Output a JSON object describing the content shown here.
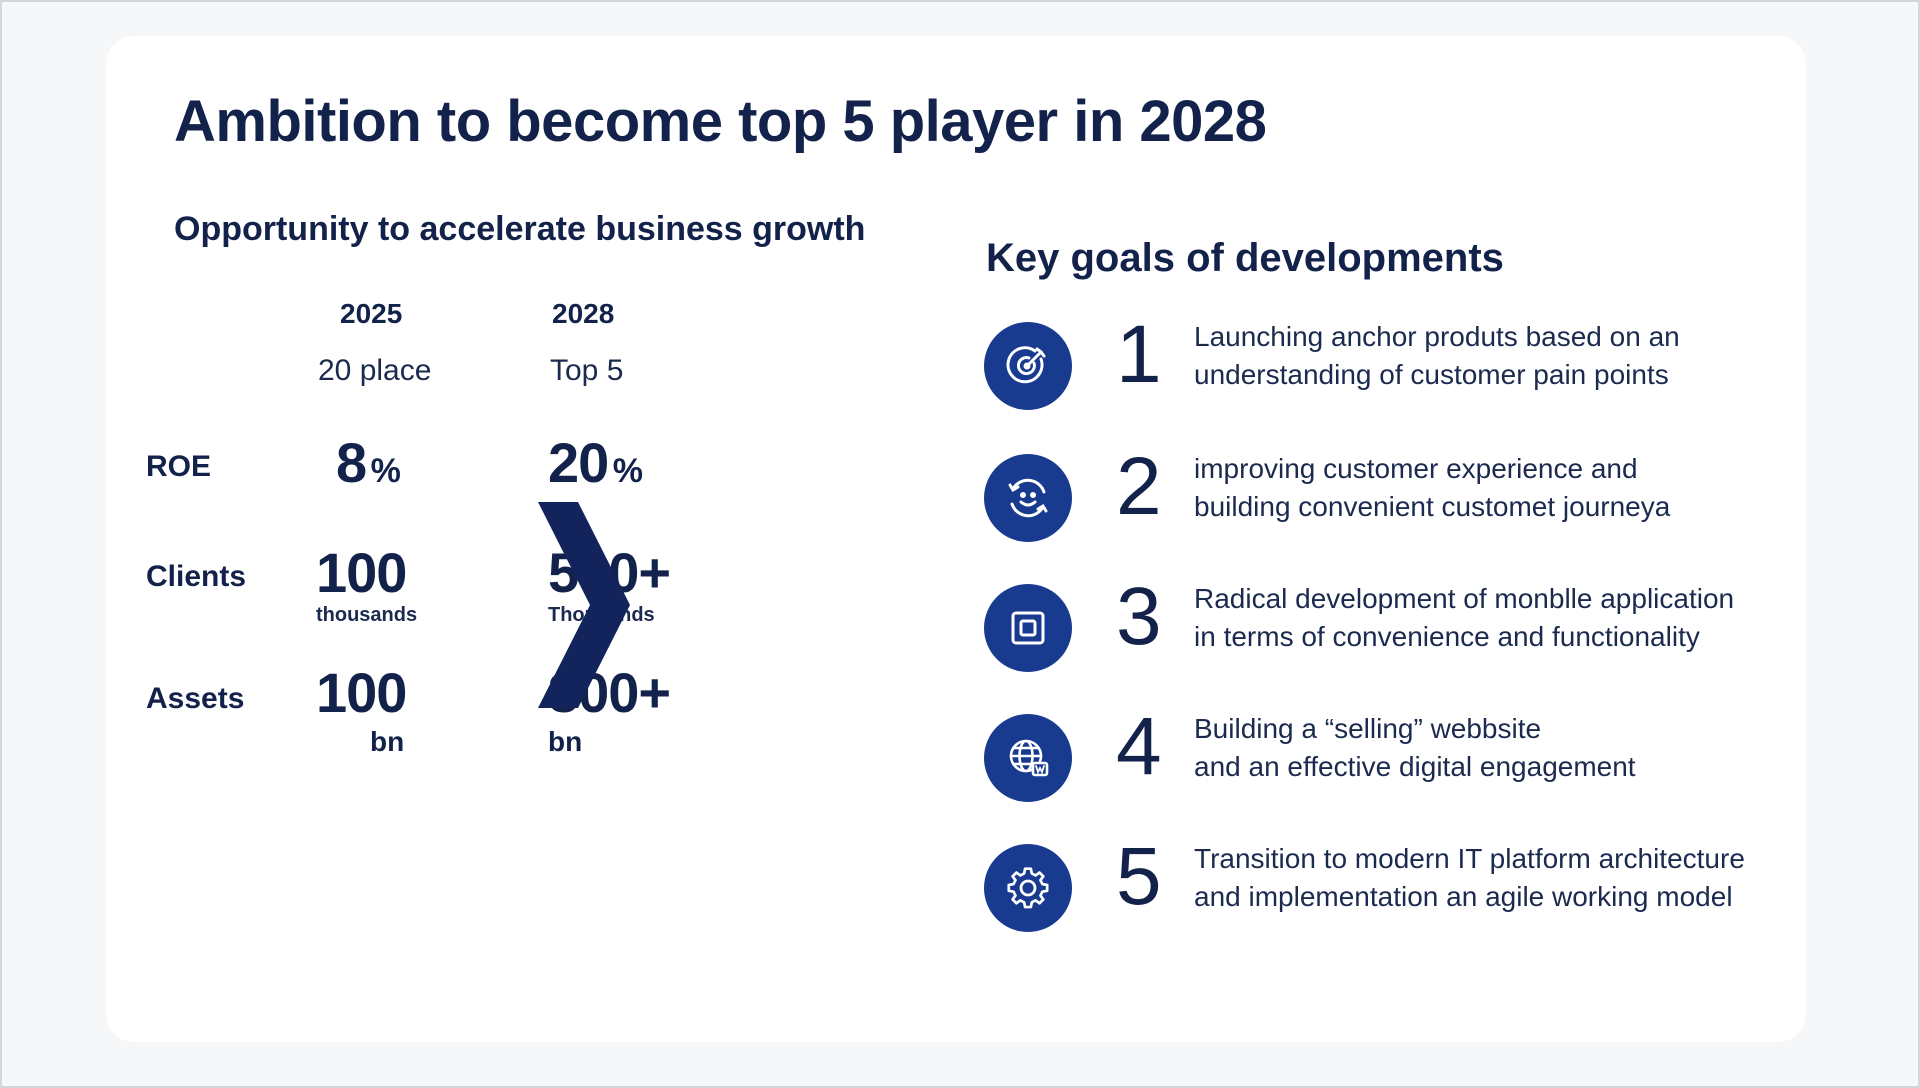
{
  "title": "Ambition to become top 5 player in 2028",
  "left": {
    "subtitle": "Opportunity to accelerate business growth",
    "year_from": "2025",
    "year_to": "2028",
    "rank_from": "20 place",
    "rank_to": "Top 5",
    "rows": {
      "roe": {
        "label": "ROE",
        "from": "8",
        "from_unit": "%",
        "to": "20",
        "to_unit": "%"
      },
      "clients": {
        "label": "Clients",
        "from": "100",
        "from_sub": "thousands",
        "to": "500+",
        "to_sub": "Thousands"
      },
      "assets": {
        "label": "Assets",
        "from": "100",
        "from_sub": "bn",
        "to": "300+",
        "to_sub": "bn"
      }
    }
  },
  "right": {
    "title": "Key goals of developments",
    "goals": [
      {
        "num": "1",
        "icon": "target-icon",
        "line1": "Launching anchor produts based on an",
        "line2": "understanding of customer pain points"
      },
      {
        "num": "2",
        "icon": "smile-icon",
        "line1": "improving customer experience and",
        "line2": "building convenient customet journeya"
      },
      {
        "num": "3",
        "icon": "mobile-app-icon",
        "line1": "Radical development of monblle application",
        "line2": "in terms of convenience and functionality"
      },
      {
        "num": "4",
        "icon": "globe-icon",
        "line1": "Building a “selling” webbsite",
        "line2": "and an effective digital engagement"
      },
      {
        "num": "5",
        "icon": "gear-icon",
        "line1": "Transition to modern IT platform architecture",
        "line2": "and implementation an agile working model"
      }
    ]
  },
  "colors": {
    "navy": "#13224a",
    "icon_blue": "#183a8f",
    "background": "#f6f7f9"
  }
}
